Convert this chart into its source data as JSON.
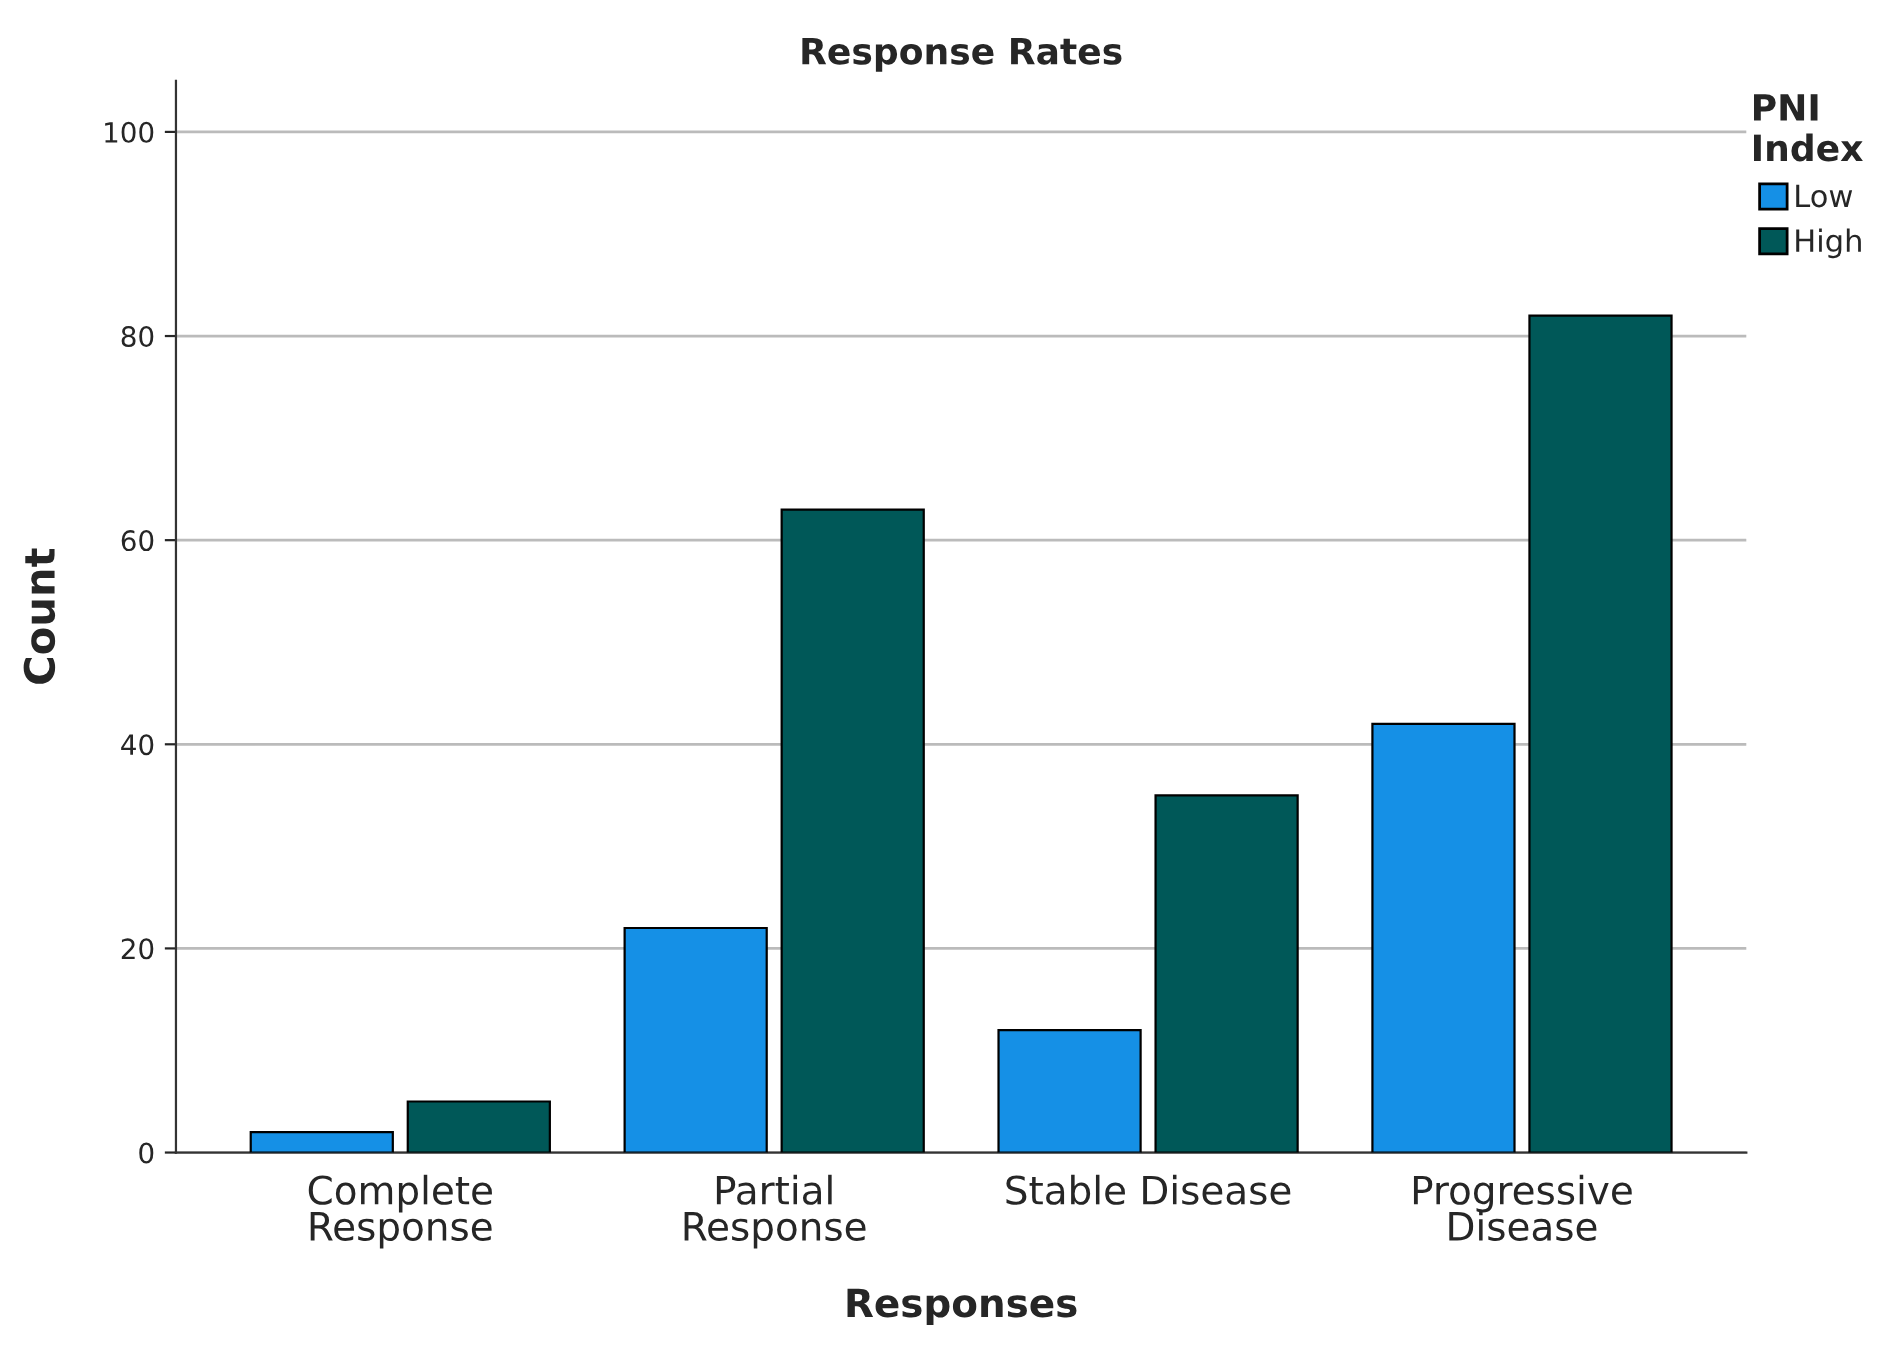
{
  "chart_data": {
    "type": "bar",
    "title": "Response Rates",
    "xlabel": "Responses",
    "ylabel": "Count",
    "legend_title": "PNI Index",
    "categories": [
      "Complete Response",
      "Partial Response",
      "Stable Disease",
      "Progressive Disease"
    ],
    "series": [
      {
        "name": "Low",
        "color": "#1590e6",
        "values": [
          2,
          22,
          12,
          42
        ]
      },
      {
        "name": "High",
        "color": "#005858",
        "values": [
          5,
          63,
          35,
          82
        ]
      }
    ],
    "ylim": [
      0,
      105
    ],
    "yticks": [
      0,
      20,
      40,
      60,
      80,
      100
    ],
    "grid": "y",
    "legend": "top right"
  }
}
